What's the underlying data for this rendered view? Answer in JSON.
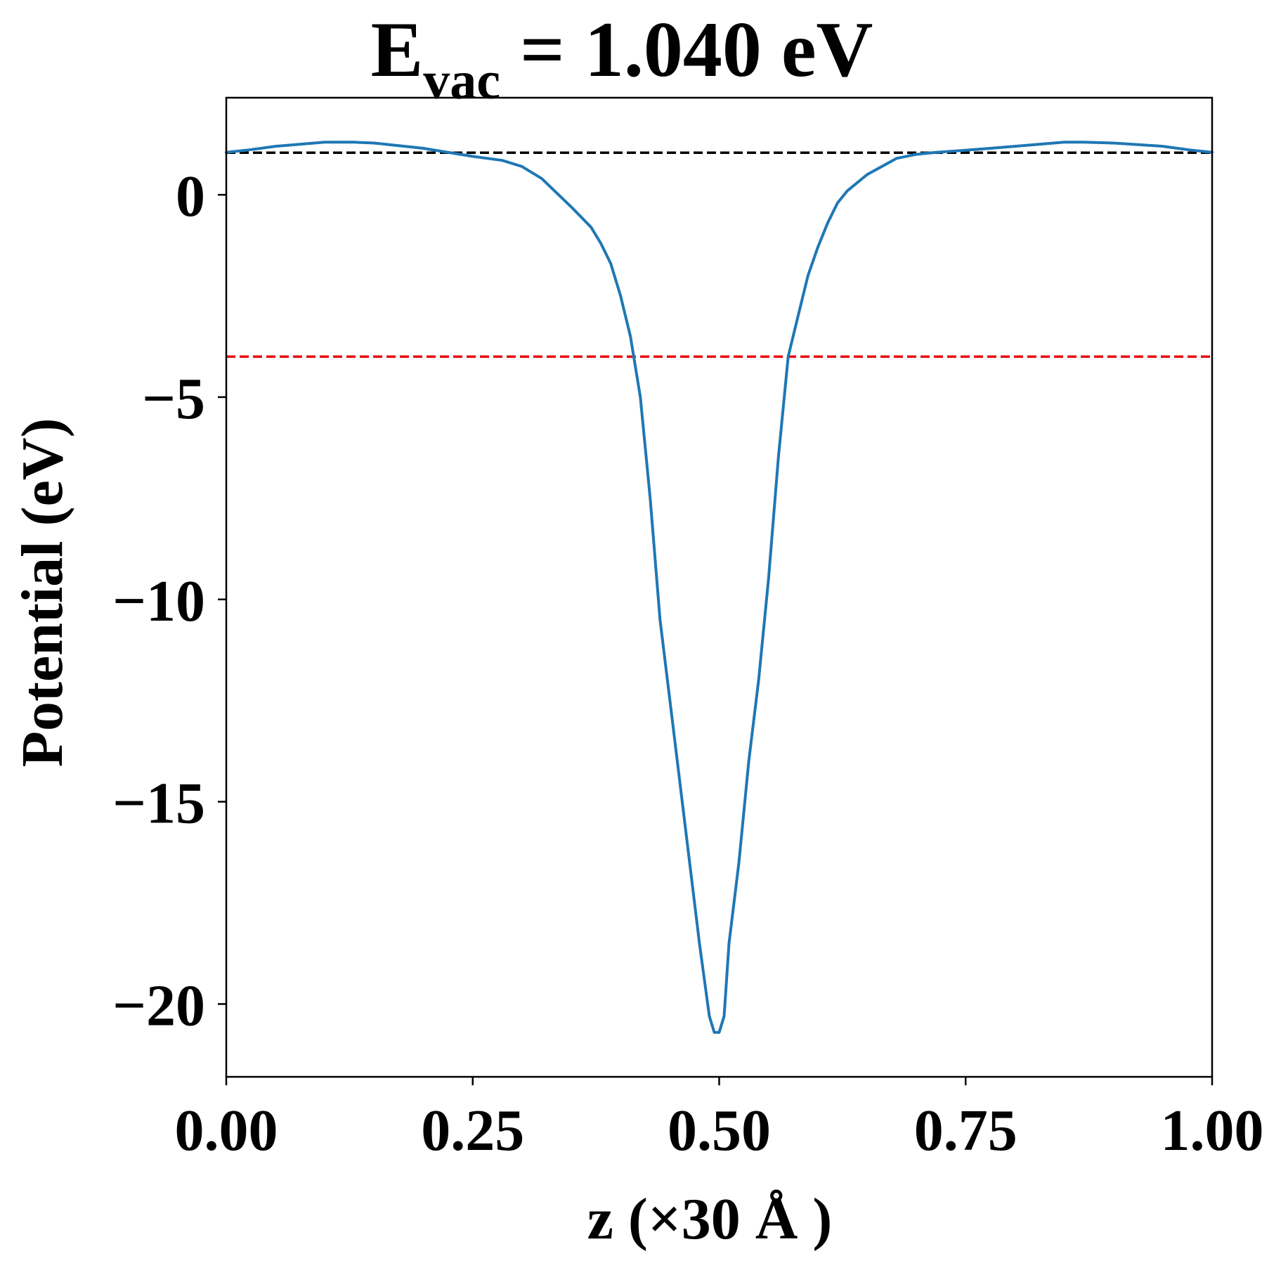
{
  "chart_data": {
    "type": "line",
    "title": {
      "main": "E",
      "subscript": "vac",
      "rest": " = 1.040 eV"
    },
    "xlabel": "z (×30 Å )",
    "ylabel": "Potential (eV)",
    "xlim": [
      0.0,
      1.0
    ],
    "ylim": [
      -21.8,
      2.4
    ],
    "x_ticks": [
      0.0,
      0.25,
      0.5,
      0.75,
      1.0
    ],
    "x_tick_labels": [
      "0.00",
      "0.25",
      "0.50",
      "0.75",
      "1.00"
    ],
    "y_ticks": [
      0,
      -5,
      -10,
      -15,
      -20
    ],
    "y_tick_labels": [
      "0",
      "−5",
      "−10",
      "−15",
      "−20"
    ],
    "grid": false,
    "legend": "none",
    "reference_lines": [
      {
        "y": 1.04,
        "color": "#000000",
        "style": "dashed"
      },
      {
        "y": -4.0,
        "color": "#e8000b",
        "style": "dashed"
      }
    ],
    "series": [
      {
        "color": "#1f77b4",
        "x": [
          0.0,
          0.02,
          0.05,
          0.1,
          0.13,
          0.15,
          0.2,
          0.25,
          0.28,
          0.3,
          0.32,
          0.35,
          0.37,
          0.38,
          0.39,
          0.4,
          0.41,
          0.42,
          0.43,
          0.44,
          0.45,
          0.46,
          0.47,
          0.48,
          0.49,
          0.495,
          0.5,
          0.505,
          0.51,
          0.52,
          0.53,
          0.54,
          0.55,
          0.56,
          0.57,
          0.58,
          0.59,
          0.6,
          0.61,
          0.62,
          0.63,
          0.65,
          0.68,
          0.7,
          0.72,
          0.75,
          0.8,
          0.85,
          0.87,
          0.9,
          0.95,
          0.98,
          1.0
        ],
        "y": [
          1.05,
          1.1,
          1.2,
          1.3,
          1.3,
          1.28,
          1.15,
          0.95,
          0.85,
          0.7,
          0.4,
          -0.3,
          -0.8,
          -1.2,
          -1.7,
          -2.5,
          -3.5,
          -5.0,
          -7.5,
          -10.5,
          -12.5,
          -14.5,
          -16.5,
          -18.5,
          -20.3,
          -20.7,
          -20.7,
          -20.3,
          -18.5,
          -16.5,
          -14.0,
          -12.0,
          -9.5,
          -6.5,
          -4.0,
          -3.0,
          -2.0,
          -1.3,
          -0.7,
          -0.2,
          0.1,
          0.5,
          0.9,
          1.0,
          1.05,
          1.1,
          1.2,
          1.3,
          1.3,
          1.28,
          1.2,
          1.1,
          1.05
        ]
      }
    ]
  }
}
